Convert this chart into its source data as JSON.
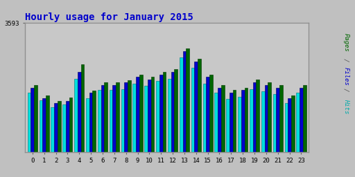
{
  "title": "Hourly usage for January 2015",
  "title_color": "#0000cc",
  "title_fontsize": 10,
  "background_color": "#c0c0c0",
  "plot_bg_color": "#c8c8c8",
  "hours": [
    0,
    1,
    2,
    3,
    4,
    5,
    6,
    7,
    8,
    9,
    10,
    11,
    12,
    13,
    14,
    15,
    16,
    17,
    18,
    19,
    20,
    21,
    22,
    23
  ],
  "hits_raw": [
    1660,
    1440,
    1260,
    1330,
    2050,
    1510,
    1730,
    1730,
    1760,
    1910,
    1840,
    1980,
    2050,
    2630,
    2340,
    1910,
    1660,
    1480,
    1550,
    1760,
    1690,
    1620,
    1360,
    1660
  ],
  "files_raw": [
    1800,
    1510,
    1360,
    1430,
    2230,
    1650,
    1870,
    1870,
    1940,
    2090,
    2020,
    2160,
    2230,
    2810,
    2520,
    2090,
    1800,
    1660,
    1730,
    1940,
    1870,
    1800,
    1510,
    1800
  ],
  "pages_raw": [
    1870,
    1580,
    1420,
    1520,
    2450,
    1720,
    1940,
    1940,
    2010,
    2160,
    2090,
    2230,
    2310,
    2880,
    2590,
    2160,
    1870,
    1730,
    1800,
    2020,
    1940,
    1870,
    1580,
    1870
  ],
  "max_val": 3593,
  "hits_color": "#00dddd",
  "files_color": "#0000cc",
  "pages_color": "#006600",
  "bar_width": 0.28,
  "font_family": "monospace",
  "grid_color": "#b0b0b0",
  "ylabel_pages_color": "#006600",
  "ylabel_files_color": "#0000cc",
  "ylabel_hits_color": "#00aaaa",
  "ylabel_slash_color": "#555555"
}
